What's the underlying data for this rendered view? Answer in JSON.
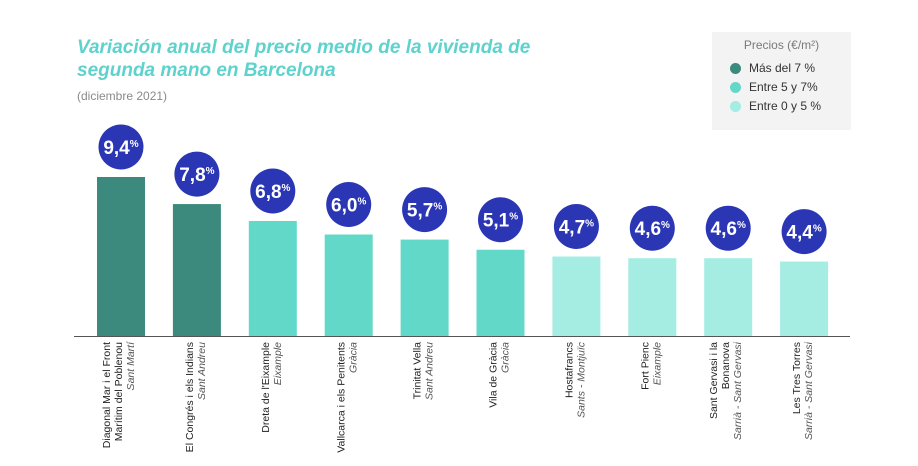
{
  "chart_data": {
    "type": "bar",
    "title": "Variación anual del precio medio de la vivienda de segunda mano en Barcelona",
    "subtitle": "(diciembre 2021)",
    "value_labels": [
      "9,4%",
      "7,8%",
      "6,8%",
      "6,0%",
      "5,7%",
      "5,1%",
      "4,7%",
      "4,6%",
      "4,6%",
      "4,4%"
    ],
    "categories": [
      {
        "name": [
          "Diagonal Mar i el Front",
          "Marítim del Poblenou"
        ],
        "district": "Sant Martí"
      },
      {
        "name": [
          "El Congrés i els Indians"
        ],
        "district": "Sant Andreu"
      },
      {
        "name": [
          "Dreta de l'Eixample"
        ],
        "district": "Eixample"
      },
      {
        "name": [
          "Vallcarca i els Penitents"
        ],
        "district": "Gràcia"
      },
      {
        "name": [
          "Trinitat Vella"
        ],
        "district": "Sant Andreu"
      },
      {
        "name": [
          "Vila de Gràcia"
        ],
        "district": "Gràcia"
      },
      {
        "name": [
          "Hostafrancs"
        ],
        "district": "Sants - Montjuïc"
      },
      {
        "name": [
          "Fort Pienc"
        ],
        "district": "Eixample"
      },
      {
        "name": [
          "Sant Gervasi i la",
          "Bonanova"
        ],
        "district": "Sarrià - Sant Gervasi"
      },
      {
        "name": [
          "Les Tres Torres"
        ],
        "district": "Sarrià - Sant Gervasi"
      }
    ],
    "values": [
      9.4,
      7.8,
      6.8,
      6.0,
      5.7,
      5.1,
      4.7,
      4.6,
      4.6,
      4.4
    ],
    "groups": [
      0,
      0,
      1,
      1,
      1,
      1,
      2,
      2,
      2,
      2
    ],
    "ylim": [
      0,
      9.4
    ],
    "grid": false,
    "legend": {
      "title": "Precios (€/m²)",
      "placement": "top-right",
      "items": [
        {
          "label": "Más del 7 %",
          "color": "#3c8a7e"
        },
        {
          "label": "Entre 5 y 7%",
          "color": "#62d8c8"
        },
        {
          "label": "Entre 0 y 5 %",
          "color": "#a5ece3"
        }
      ]
    }
  },
  "colors": {
    "title": "#5ed2cc",
    "badge": "#2b36b5",
    "axis": "#555555"
  }
}
